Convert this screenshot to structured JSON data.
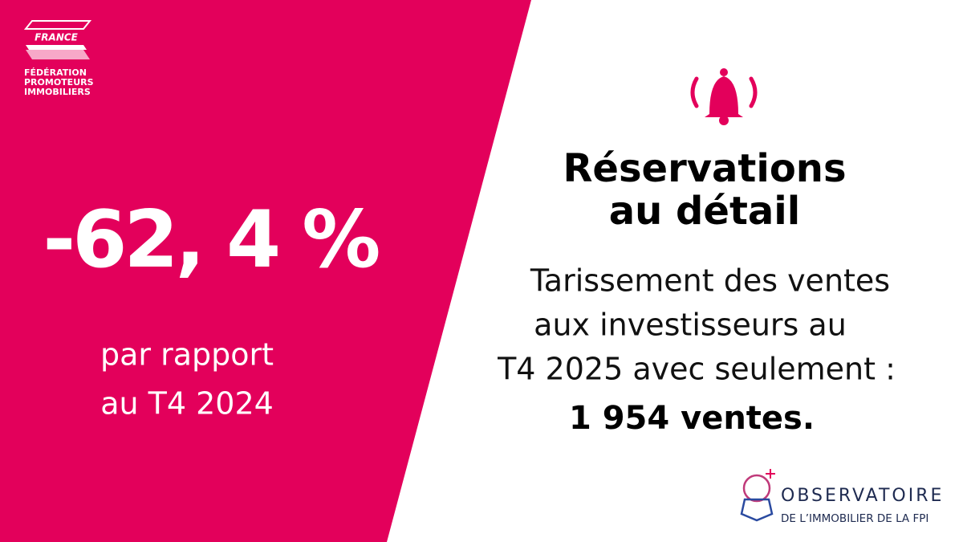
{
  "logo": {
    "country": "FRANCE",
    "lines": [
      "FÉDÉRATION",
      "PROMOTEURS",
      "IMMOBILIERS"
    ]
  },
  "stat": {
    "value": "-62, 4 %",
    "comparison": [
      "par rapport",
      "au T4 2024"
    ]
  },
  "heading": [
    "Réservations",
    "au détail"
  ],
  "body": {
    "lines": [
      "Tarissement des ventes",
      "aux investisseurs au",
      "T4 2025 avec seulement :"
    ],
    "highlight": "1 954 ventes."
  },
  "observatoire": {
    "title": "OBSERVATOIRE",
    "subtitle": "DE L’IMMOBILIER DE LA FPI"
  }
}
